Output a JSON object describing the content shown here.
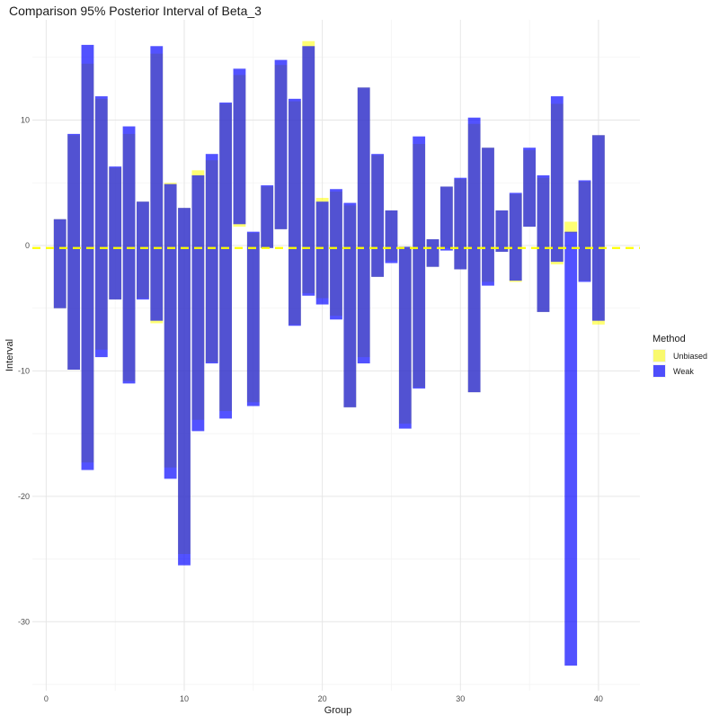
{
  "chart_data": {
    "type": "bar",
    "subtype": "floating-range-overlay",
    "title": "Comparison 95% Posterior Interval of Beta_3",
    "xlabel": "Group",
    "ylabel": "Interval",
    "xlim": [
      -1,
      43
    ],
    "ylim": [
      -35.5,
      18
    ],
    "x_ticks": [
      0,
      10,
      20,
      30,
      40
    ],
    "y_ticks": [
      -30,
      -20,
      -10,
      0,
      10
    ],
    "grid": true,
    "reference_line": {
      "y": -0.2,
      "style": "dashed",
      "color": "#ffff00"
    },
    "legend": {
      "title": "Method",
      "position": "right"
    },
    "series": [
      {
        "name": "Unbiased",
        "color": "#ffff00",
        "opacity": 0.55,
        "x": [
          1,
          2,
          3,
          4,
          5,
          6,
          7,
          8,
          9,
          10,
          11,
          12,
          13,
          14,
          15,
          16,
          17,
          18,
          19,
          20,
          21,
          22,
          23,
          24,
          25,
          26,
          27,
          28,
          29,
          30,
          31,
          32,
          33,
          34,
          35,
          36,
          37,
          38,
          39,
          40
        ],
        "lower": [
          -5.0,
          -9.9,
          -17.3,
          -8.3,
          -4.3,
          -10.8,
          -4.2,
          -6.2,
          -17.7,
          -24.6,
          -13.9,
          -9.3,
          -13.2,
          1.5,
          -12.5,
          -0.2,
          1.3,
          -6.3,
          -3.8,
          -4.2,
          -5.6,
          -12.9,
          -8.9,
          -2.5,
          -1.2,
          -14.2,
          -11.3,
          -1.7,
          -0.2,
          -1.9,
          -11.7,
          -2.9,
          -0.5,
          -2.9,
          1.5,
          -5.3,
          -1.5,
          1.0,
          -2.8,
          -6.3
        ],
        "upper": [
          2.1,
          8.8,
          14.5,
          11.7,
          6.2,
          8.9,
          3.5,
          15.3,
          5.0,
          3.0,
          6.0,
          6.8,
          11.3,
          13.6,
          1.0,
          4.7,
          14.4,
          11.5,
          16.3,
          3.8,
          4.3,
          3.2,
          12.6,
          7.2,
          2.8,
          -0.1,
          8.1,
          0.5,
          4.7,
          5.3,
          9.7,
          7.8,
          2.8,
          4.1,
          7.6,
          5.4,
          11.3,
          1.9,
          5.1,
          8.8
        ]
      },
      {
        "name": "Weak",
        "color": "#0000ff",
        "opacity": 0.68,
        "x": [
          1,
          2,
          3,
          4,
          5,
          6,
          7,
          8,
          9,
          10,
          11,
          12,
          13,
          14,
          15,
          16,
          17,
          18,
          19,
          20,
          21,
          22,
          23,
          24,
          25,
          26,
          27,
          28,
          29,
          30,
          31,
          32,
          33,
          34,
          35,
          36,
          37,
          38,
          39,
          40
        ],
        "lower": [
          -5.0,
          -9.9,
          -17.9,
          -8.9,
          -4.3,
          -11.0,
          -4.3,
          -6.0,
          -18.6,
          -25.5,
          -14.8,
          -9.4,
          -13.8,
          1.7,
          -12.8,
          -0.2,
          1.3,
          -6.4,
          -4.0,
          -4.7,
          -5.9,
          -12.9,
          -9.4,
          -2.5,
          -1.4,
          -14.6,
          -11.4,
          -1.7,
          -0.4,
          -1.9,
          -11.7,
          -3.2,
          -0.5,
          -2.8,
          1.5,
          -5.3,
          -1.3,
          -33.5,
          -2.9,
          -6.0
        ],
        "upper": [
          2.1,
          8.9,
          16.0,
          11.9,
          6.3,
          9.5,
          3.5,
          15.9,
          4.9,
          3.0,
          5.6,
          7.3,
          11.4,
          14.1,
          1.1,
          4.8,
          14.8,
          11.7,
          15.9,
          3.5,
          4.5,
          3.4,
          12.6,
          7.3,
          2.8,
          -0.1,
          8.7,
          0.5,
          4.7,
          5.4,
          10.2,
          7.8,
          2.8,
          4.2,
          7.8,
          5.6,
          11.9,
          1.1,
          5.2,
          8.8
        ]
      }
    ]
  }
}
